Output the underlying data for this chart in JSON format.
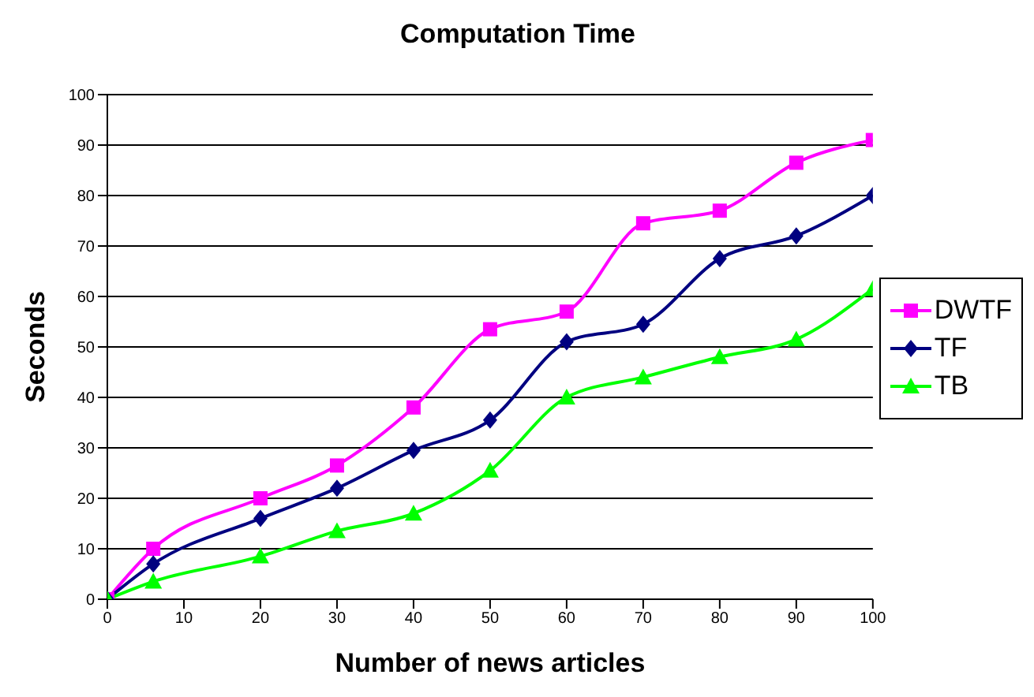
{
  "chart_data": {
    "type": "line",
    "title": "Computation Time",
    "xlabel": "Number of news articles",
    "ylabel": "Seconds",
    "x": [
      0,
      6,
      20,
      30,
      40,
      50,
      60,
      70,
      80,
      90,
      100
    ],
    "series": [
      {
        "name": "DWTF",
        "color": "#ff00ff",
        "marker": "square",
        "values": [
          0,
          10,
          20,
          26.5,
          38,
          53.5,
          57,
          74.5,
          77,
          86.5,
          91
        ]
      },
      {
        "name": "TF",
        "color": "#000080",
        "marker": "diamond",
        "values": [
          0,
          7,
          16,
          22,
          29.5,
          35.5,
          51,
          54.5,
          67.5,
          72,
          80
        ]
      },
      {
        "name": "TB",
        "color": "#00ff00",
        "marker": "triangle",
        "values": [
          0,
          3.5,
          8.5,
          13.5,
          17,
          25.5,
          40,
          44,
          48,
          51.5,
          61.5
        ]
      }
    ],
    "xlim": [
      0,
      100
    ],
    "xticks": [
      0,
      10,
      20,
      30,
      40,
      50,
      60,
      70,
      80,
      90,
      100
    ],
    "ylim": [
      0,
      100
    ],
    "yticks": [
      0,
      10,
      20,
      30,
      40,
      50,
      60,
      70,
      80,
      90,
      100
    ],
    "grid": "y",
    "legend": "right"
  }
}
